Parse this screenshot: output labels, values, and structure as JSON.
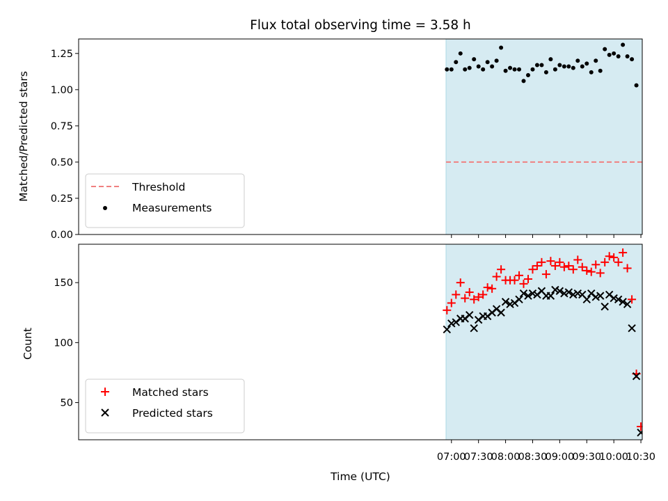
{
  "chart_data": [
    {
      "panel": "top",
      "type": "scatter",
      "title": "Flux total observing time = 3.58 h",
      "ylabel": "Matched/Predicted stars",
      "xlabel": "",
      "ylim": [
        0.0,
        1.35
      ],
      "xlim_minutes": [
        6.75,
        631.5
      ],
      "yticks": [
        0.0,
        0.25,
        0.5,
        0.75,
        1.0,
        1.25
      ],
      "ytick_labels": [
        "0.00",
        "0.25",
        "0.50",
        "0.75",
        "1.00",
        "1.25"
      ],
      "shaded_span_minutes": [
        414,
        864
      ],
      "threshold": {
        "name": "Threshold",
        "value": 0.5,
        "color": "#f08080",
        "style": "dashed"
      },
      "series": [
        {
          "name": "Measurements",
          "color": "#000000",
          "marker": "dot",
          "x_minutes": [
            415,
            420,
            425,
            430,
            435,
            440,
            445,
            450,
            455,
            460,
            465,
            470,
            475,
            480,
            485,
            490,
            495,
            500,
            505,
            510,
            515,
            520,
            525,
            530,
            535,
            540,
            545,
            550,
            555,
            560,
            565,
            570,
            575,
            580,
            585,
            590,
            595,
            600,
            605,
            610,
            615,
            620,
            625
          ],
          "y": [
            1.14,
            1.14,
            1.19,
            1.25,
            1.14,
            1.15,
            1.21,
            1.16,
            1.14,
            1.19,
            1.16,
            1.2,
            1.29,
            1.13,
            1.15,
            1.14,
            1.14,
            1.06,
            1.1,
            1.14,
            1.17,
            1.17,
            1.12,
            1.21,
            1.14,
            1.17,
            1.16,
            1.16,
            1.15,
            1.2,
            1.16,
            1.18,
            1.12,
            1.2,
            1.13,
            1.28,
            1.24,
            1.25,
            1.23,
            1.31,
            1.23,
            1.21,
            1.03
          ]
        }
      ]
    },
    {
      "panel": "bottom",
      "type": "scatter",
      "title": "",
      "ylabel": "Count",
      "xlabel": "Time (UTC)",
      "ylim": [
        19,
        182
      ],
      "xlim_minutes": [
        6.75,
        631.5
      ],
      "yticks": [
        50,
        100,
        150
      ],
      "ytick_labels": [
        "50",
        "100",
        "150"
      ],
      "xticks_minutes": [
        420,
        450,
        480,
        510,
        540,
        570,
        600,
        630
      ],
      "xtick_labels": [
        "07:00",
        "07:30",
        "08:00",
        "08:30",
        "09:00",
        "09:30",
        "10:00",
        "10:30"
      ],
      "shaded_span_minutes": [
        414,
        864
      ],
      "series": [
        {
          "name": "Matched stars",
          "color": "#ff0000",
          "marker": "plus",
          "x_minutes": [
            415,
            420,
            425,
            430,
            435,
            440,
            445,
            450,
            455,
            460,
            465,
            470,
            475,
            480,
            485,
            490,
            495,
            500,
            505,
            510,
            515,
            520,
            525,
            530,
            535,
            540,
            545,
            550,
            555,
            560,
            565,
            570,
            575,
            580,
            585,
            590,
            595,
            600,
            605,
            610,
            615,
            620,
            625,
            630
          ],
          "y": [
            127,
            133,
            140,
            150,
            137,
            142,
            136,
            138,
            140,
            146,
            145,
            155,
            161,
            152,
            152,
            152,
            156,
            149,
            153,
            161,
            164,
            167,
            157,
            168,
            164,
            167,
            163,
            164,
            161,
            169,
            163,
            160,
            159,
            165,
            158,
            167,
            172,
            171,
            167,
            175,
            162,
            136,
            74,
            30
          ]
        },
        {
          "name": "Predicted stars",
          "color": "#000000",
          "marker": "x",
          "x_minutes": [
            415,
            420,
            425,
            430,
            435,
            440,
            445,
            450,
            455,
            460,
            465,
            470,
            475,
            480,
            485,
            490,
            495,
            500,
            505,
            510,
            515,
            520,
            525,
            530,
            535,
            540,
            545,
            550,
            555,
            560,
            565,
            570,
            575,
            580,
            585,
            590,
            595,
            600,
            605,
            610,
            615,
            620,
            625,
            630
          ],
          "y": [
            111,
            116,
            117,
            120,
            120,
            123,
            112,
            119,
            122,
            122,
            125,
            128,
            125,
            134,
            132,
            133,
            136,
            141,
            139,
            141,
            140,
            143,
            139,
            139,
            144,
            143,
            141,
            142,
            140,
            141,
            140,
            136,
            141,
            138,
            139,
            130,
            140,
            137,
            136,
            134,
            132,
            112,
            72,
            25
          ]
        }
      ]
    }
  ]
}
